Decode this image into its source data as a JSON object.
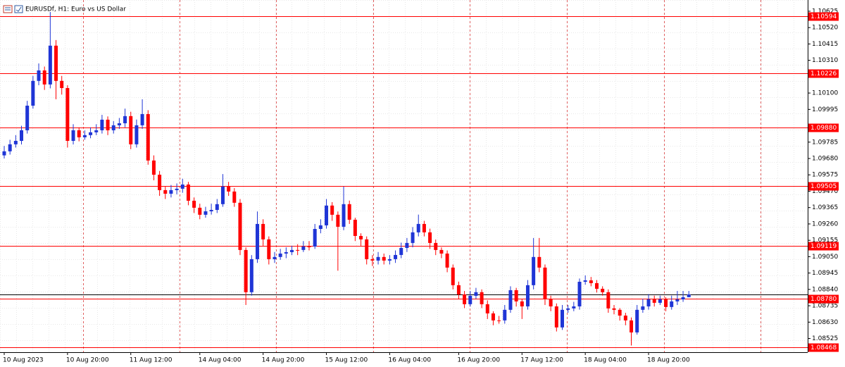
{
  "chart_data": {
    "type": "candlestick",
    "title": "EURUSDf, H1:  Euro vs US Dollar",
    "bull_color": "#1f35d6",
    "bear_color": "#ff0000",
    "level_color": "#ff0000",
    "ylim": [
      1.08437,
      1.10697
    ],
    "yticks": [
      1.10625,
      {
        "value": 1.1052,
        "label": "1.10520"
      },
      1.10415,
      {
        "value": 1.1031,
        "label": "1.10310"
      },
      {
        "value": 1.101,
        "label": "1.10100"
      },
      1.09995,
      1.09785,
      {
        "value": 1.0968,
        "label": "1.09680"
      },
      1.09575,
      {
        "value": 1.0947,
        "label": "1.09470"
      },
      1.09365,
      {
        "value": 1.0926,
        "label": "1.09260"
      },
      1.09155,
      {
        "value": 1.0905,
        "label": "1.09050"
      },
      1.08945,
      {
        "value": 1.0884,
        "label": "1.08840"
      },
      1.08735,
      {
        "value": 1.0863,
        "label": "1.08630"
      },
      1.08525
    ],
    "levels": [
      1.10594,
      1.10226,
      {
        "value": 1.0988,
        "label": "1.09880"
      },
      1.09505,
      1.09119,
      {
        "value": 1.0878,
        "label": "1.08780"
      },
      1.08468
    ],
    "categories": [
      "10 Aug 2023",
      null,
      null,
      null,
      null,
      null,
      null,
      null,
      null,
      null,
      null,
      "10 Aug 20:00",
      null,
      null,
      null,
      null,
      null,
      null,
      null,
      null,
      null,
      null,
      "11 Aug 12:00",
      null,
      null,
      null,
      null,
      null,
      null,
      null,
      null,
      null,
      null,
      null,
      "14 Aug 04:00",
      null,
      null,
      null,
      null,
      null,
      null,
      null,
      null,
      null,
      null,
      "14 Aug 20:00",
      null,
      null,
      null,
      null,
      null,
      null,
      null,
      null,
      null,
      null,
      "15 Aug 12:00",
      null,
      null,
      null,
      null,
      null,
      null,
      null,
      null,
      null,
      null,
      "16 Aug 04:00",
      null,
      null,
      null,
      null,
      null,
      null,
      null,
      null,
      null,
      null,
      null,
      "16 Aug 20:00",
      null,
      null,
      null,
      null,
      null,
      null,
      null,
      null,
      null,
      null,
      "17 Aug 12:00",
      null,
      null,
      null,
      null,
      null,
      null,
      null,
      null,
      null,
      null,
      "18 Aug 04:00",
      null,
      null,
      null,
      null,
      null,
      null,
      null,
      null,
      null,
      null,
      "18 Aug 20:00",
      null,
      null,
      null,
      null,
      null,
      null,
      null
    ],
    "open": [
      1.097,
      1.09726,
      1.09771,
      1.09793,
      1.09861,
      1.10019,
      1.10178,
      1.10245,
      1.10155,
      1.10404,
      1.10178,
      1.10132,
      1.09793,
      1.09861,
      1.09816,
      1.0983,
      1.09848,
      1.09861,
      1.09929,
      1.09861,
      1.09893,
      1.09906,
      1.09952,
      1.09771,
      1.09893,
      1.09965,
      1.09667,
      1.09576,
      1.09477,
      1.09454,
      1.09477,
      1.09486,
      1.09513,
      1.09409,
      1.09364,
      1.09319,
      1.09341,
      1.0935,
      1.09387,
      1.095,
      1.09468,
      1.09396,
      1.09093,
      1.08822,
      1.09034,
      1.0926,
      1.09161,
      1.09034,
      1.09048,
      1.0907,
      1.09079,
      1.09093,
      1.09093,
      1.09115,
      1.09115,
      1.09228,
      1.09251,
      1.09378,
      1.09319,
      1.09242,
      1.09387,
      1.09287,
      1.09183,
      1.09161,
      1.09034,
      1.09025,
      1.09048,
      1.09025,
      1.09034,
      1.09061,
      1.09106,
      1.09138,
      1.09206,
      1.0926,
      1.09206,
      1.09138,
      1.09093,
      1.0907,
      1.0898,
      1.08867,
      1.08808,
      1.08745,
      1.08799,
      1.08822,
      1.08745,
      1.08686,
      1.08641,
      1.08641,
      1.08709,
      1.08835,
      1.08763,
      1.08731,
      1.08867,
      1.09048,
      1.0898,
      1.08776,
      1.08731,
      1.08596,
      1.08709,
      1.08718,
      1.08731,
      1.08889,
      1.08898,
      1.0888,
      1.08844,
      1.08822,
      1.08718,
      1.08709,
      1.08672,
      1.08641,
      1.08564,
      1.08709,
      1.08731,
      1.08776,
      1.08754,
      1.08776,
      1.08727,
      1.08763,
      1.08776,
      1.0879
    ],
    "high": [
      1.0976,
      1.098,
      1.0983,
      1.0989,
      1.1005,
      1.1021,
      1.1029,
      1.1027,
      1.1062,
      1.1044,
      1.1021,
      1.1015,
      1.099,
      1.0988,
      1.0986,
      1.0988,
      1.099,
      1.0996,
      1.0995,
      1.0992,
      1.0994,
      1.1,
      1.0998,
      1.0993,
      1.1006,
      1.0999,
      1.097,
      1.096,
      1.095,
      1.0951,
      1.0952,
      1.0955,
      1.0953,
      1.0943,
      1.0939,
      1.0937,
      1.0939,
      1.0942,
      1.0958,
      1.0953,
      1.0949,
      1.0942,
      1.0911,
      1.0906,
      1.0934,
      1.0929,
      1.0918,
      1.0908,
      1.091,
      1.0911,
      1.0912,
      1.0913,
      1.0915,
      1.0915,
      1.0926,
      1.0929,
      1.0942,
      1.094,
      1.0934,
      1.095,
      1.0941,
      1.093,
      1.092,
      1.0918,
      1.0906,
      1.0908,
      1.0907,
      1.0906,
      1.0909,
      1.0914,
      1.0917,
      1.0924,
      1.0932,
      1.0928,
      1.0923,
      1.0916,
      1.0911,
      1.0909,
      1.09,
      1.0889,
      1.0883,
      1.0883,
      1.0885,
      1.0884,
      1.0877,
      1.087,
      1.0867,
      1.0874,
      1.0886,
      1.0885,
      1.0878,
      1.089,
      1.0917,
      1.0917,
      1.09,
      1.088,
      1.0875,
      1.0874,
      1.0874,
      1.0876,
      1.0891,
      1.0893,
      1.0892,
      1.089,
      1.0886,
      1.0884,
      1.0874,
      1.0872,
      1.0869,
      1.0866,
      1.0874,
      1.0878,
      1.0881,
      1.088,
      1.088,
      1.0879,
      1.088,
      1.0883,
      1.0883,
      1.0883
    ],
    "low": [
      1.0968,
      1.09705,
      1.0975,
      1.0977,
      1.0984,
      1.1,
      1.1015,
      1.1012,
      1.1013,
      1.1006,
      1.1009,
      1.0975,
      1.0977,
      1.0979,
      1.098,
      1.0981,
      1.0983,
      1.0984,
      1.0983,
      1.0984,
      1.0987,
      1.0988,
      1.0974,
      1.0975,
      1.0987,
      1.0964,
      1.0954,
      1.0944,
      1.0942,
      1.0943,
      1.0945,
      1.0946,
      1.0938,
      1.0933,
      1.0929,
      1.093,
      1.0932,
      1.0933,
      1.0937,
      1.0944,
      1.0937,
      1.0906,
      1.0874,
      1.088,
      1.0901,
      1.0912,
      1.09,
      1.0901,
      1.0903,
      1.0904,
      1.0906,
      1.0906,
      1.0908,
      1.0909,
      1.091,
      1.092,
      1.0923,
      1.0928,
      1.0896,
      1.0922,
      1.0926,
      1.0915,
      1.0912,
      1.09,
      1.0899,
      1.09,
      1.09,
      1.09,
      1.0901,
      1.0904,
      1.0908,
      1.0911,
      1.0918,
      1.0918,
      1.091,
      1.0906,
      1.0904,
      1.0895,
      1.0884,
      1.0878,
      1.0872,
      1.0873,
      1.0878,
      1.0872,
      1.0865,
      1.0861,
      1.0862,
      1.0862,
      1.0869,
      1.0873,
      1.0865,
      1.0871,
      1.0884,
      1.0895,
      1.0874,
      1.087,
      1.0857,
      1.0858,
      1.0869,
      1.087,
      1.0871,
      1.0887,
      1.0886,
      1.0882,
      1.088,
      1.0869,
      1.0868,
      1.0864,
      1.0861,
      1.0848,
      1.0855,
      1.0869,
      1.0871,
      1.0873,
      1.0874,
      1.087,
      1.0871,
      1.0874,
      1.0876,
      1.0879
    ],
    "close": [
      1.09726,
      1.09771,
      1.09793,
      1.09861,
      1.10019,
      1.10178,
      1.10245,
      1.10155,
      1.10404,
      1.10178,
      1.10132,
      1.09793,
      1.09861,
      1.09816,
      1.0983,
      1.09848,
      1.09861,
      1.09929,
      1.09861,
      1.09893,
      1.09906,
      1.09952,
      1.09771,
      1.09893,
      1.09965,
      1.09667,
      1.09576,
      1.09477,
      1.09454,
      1.09477,
      1.09486,
      1.09513,
      1.09409,
      1.09364,
      1.09319,
      1.09341,
      1.0935,
      1.09387,
      1.095,
      1.09468,
      1.09396,
      1.09093,
      1.08822,
      1.09034,
      1.0926,
      1.09161,
      1.09034,
      1.09048,
      1.0907,
      1.09079,
      1.09093,
      1.09093,
      1.09115,
      1.09115,
      1.09228,
      1.09251,
      1.09378,
      1.09319,
      1.09242,
      1.09387,
      1.09287,
      1.09183,
      1.09161,
      1.09034,
      1.09025,
      1.09048,
      1.09025,
      1.09034,
      1.09061,
      1.09106,
      1.09138,
      1.09206,
      1.0926,
      1.09206,
      1.09138,
      1.09093,
      1.0907,
      1.0898,
      1.08867,
      1.08808,
      1.08745,
      1.08799,
      1.08822,
      1.08745,
      1.08686,
      1.08641,
      1.08641,
      1.08709,
      1.08835,
      1.08763,
      1.08731,
      1.08867,
      1.09048,
      1.0898,
      1.08776,
      1.08731,
      1.08596,
      1.08709,
      1.08718,
      1.08731,
      1.08889,
      1.08898,
      1.0888,
      1.08844,
      1.08822,
      1.08718,
      1.08709,
      1.08672,
      1.08641,
      1.08564,
      1.08709,
      1.08731,
      1.08776,
      1.08754,
      1.08776,
      1.08727,
      1.08763,
      1.08776,
      1.0879,
      1.08808
    ]
  }
}
